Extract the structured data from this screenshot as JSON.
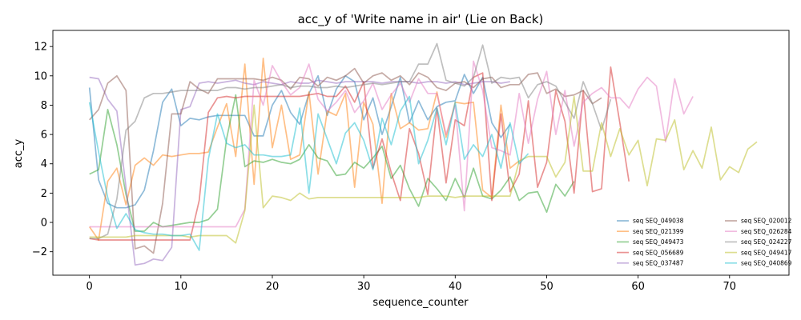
{
  "chart_data": {
    "type": "line",
    "title": "acc_y of 'Write name in air' (Lie on Back)",
    "xlabel": "sequence_counter",
    "ylabel": "acc_y",
    "xlim": [
      -4,
      76.5
    ],
    "ylim": [
      -3.6,
      13.1
    ],
    "xticks": [
      0,
      10,
      20,
      30,
      40,
      50,
      60,
      70
    ],
    "yticks": [
      -2,
      0,
      2,
      4,
      6,
      8,
      10,
      12
    ],
    "grid": false,
    "legend_position": "lower-right",
    "series": [
      {
        "name": "seq SEQ_049038",
        "color": "#1f77b4",
        "values": [
          9.2,
          2.9,
          1.3,
          1.0,
          1.0,
          1.2,
          2.2,
          4.9,
          8.2,
          9.1,
          6.6,
          7.1,
          7.0,
          7.2,
          7.3,
          7.3,
          7.3,
          7.3,
          5.9,
          5.9,
          8.0,
          9.0,
          7.5,
          6.7,
          8.8,
          10.0,
          7.3,
          9.1,
          10.0,
          9.6,
          7.0,
          8.5,
          6.0,
          7.9,
          9.9,
          6.8,
          8.3,
          7.0,
          7.9,
          8.2,
          8.3,
          10.1,
          8.8,
          9.9,
          6.8,
          5.8,
          6.7
        ]
      },
      {
        "name": "seq SEQ_021399",
        "color": "#ff7f0e",
        "values": [
          -0.3,
          -1.2,
          2.8,
          3.7,
          1.2,
          3.9,
          4.4,
          3.9,
          4.6,
          4.5,
          4.6,
          4.7,
          4.7,
          4.8,
          6.5,
          8.1,
          4.5,
          10.8,
          2.6,
          11.2,
          5.1,
          8.0,
          4.3,
          4.6,
          8.9,
          3.3,
          7.6,
          7.3,
          8.8,
          2.4,
          8.2,
          6.7,
          1.3,
          8.8,
          6.4,
          6.8,
          6.3,
          6.4,
          8.9,
          5.8,
          8.2,
          8.1,
          8.2,
          2.2,
          1.7,
          8.0,
          3.7,
          4.2
        ]
      },
      {
        "name": "seq SEQ_049473",
        "color": "#2ca02c",
        "values": [
          3.3,
          3.6,
          7.7,
          5.3,
          1.9,
          -0.6,
          -0.6,
          0.0,
          -0.3,
          -0.2,
          -0.1,
          0.0,
          0.0,
          0.2,
          0.9,
          5.7,
          8.7,
          3.8,
          4.2,
          4.1,
          4.3,
          4.1,
          4.0,
          4.3,
          5.3,
          4.4,
          4.2,
          3.2,
          3.3,
          4.1,
          3.7,
          4.4,
          5.2,
          3.0,
          3.9,
          2.3,
          1.1,
          3.0,
          2.3,
          1.5,
          3.0,
          1.7,
          3.7,
          1.8,
          1.6,
          2.2,
          3.1,
          1.5,
          2.0,
          2.1,
          0.7,
          2.6,
          1.8,
          2.8
        ]
      },
      {
        "name": "seq SEQ_056689",
        "color": "#d62728",
        "values": [
          -1.1,
          -1.2,
          -1.2,
          -1.2,
          -1.2,
          -1.2,
          -1.2,
          -1.2,
          -1.2,
          -1.2,
          -1.2,
          -1.2,
          1.5,
          7.5,
          8.5,
          8.6,
          8.5,
          8.6,
          8.6,
          8.6,
          8.6,
          8.6,
          8.6,
          8.6,
          8.7,
          8.8,
          8.6,
          8.6,
          9.3,
          8.2,
          9.6,
          3.7,
          5.7,
          3.4,
          1.5,
          6.4,
          4.7,
          1.9,
          7.8,
          2.7,
          7.0,
          6.6,
          9.9,
          10.2,
          1.5,
          7.4,
          2.1,
          3.3,
          8.3,
          2.4,
          4.1,
          9.0,
          6.9,
          2.0,
          9.0,
          2.1,
          2.3,
          10.6,
          6.8,
          2.8
        ]
      },
      {
        "name": "seq SEQ_037487",
        "color": "#9467bd",
        "values": [
          9.9,
          9.8,
          8.4,
          7.6,
          2.4,
          -2.9,
          -2.8,
          -2.5,
          -2.6,
          -1.7,
          7.7,
          7.9,
          9.5,
          9.6,
          9.5,
          9.6,
          9.7,
          9.5,
          9.4,
          9.6,
          9.5,
          9.4,
          9.6,
          9.5,
          9.5,
          9.7,
          9.6,
          9.5,
          9.6,
          9.6,
          9.6,
          9.6,
          9.5,
          9.6,
          9.6,
          9.6,
          9.5,
          9.6,
          9.6,
          9.5,
          9.6,
          9.4,
          9.5,
          9.6,
          9.6,
          9.5,
          9.6
        ]
      },
      {
        "name": "seq SEQ_020012",
        "color": "#8c564b",
        "values": [
          7.0,
          7.7,
          9.5,
          10.0,
          9.0,
          -1.8,
          -1.6,
          -2.1,
          1.3,
          7.4,
          7.4,
          9.6,
          9.1,
          8.8,
          9.8,
          9.8,
          9.8,
          9.8,
          9.8,
          9.7,
          9.9,
          9.7,
          9.1,
          9.9,
          9.8,
          9.3,
          9.9,
          9.7,
          10.0,
          10.5,
          9.5,
          10.0,
          10.2,
          9.7,
          10.0,
          9.4,
          10.2,
          9.9,
          9.2,
          9.0,
          9.5,
          9.6,
          9.2,
          9.8,
          9.9,
          9.2,
          9.4,
          9.4,
          10.1,
          10.2,
          8.8,
          9.1,
          8.6,
          8.7,
          9.0,
          8.1,
          8.5
        ]
      },
      {
        "name": "seq SEQ_026284",
        "color": "#e377c2",
        "values": [
          -0.3,
          -0.3,
          -0.3,
          -0.3,
          -0.3,
          -0.3,
          -0.3,
          -0.3,
          -0.3,
          -0.3,
          -0.3,
          -0.3,
          -0.3,
          -0.3,
          -0.3,
          -0.3,
          -0.3,
          0.9,
          9.7,
          8.0,
          10.7,
          9.6,
          8.7,
          9.2,
          10.8,
          8.4,
          7.6,
          8.2,
          9.0,
          7.5,
          8.3,
          9.5,
          7.7,
          8.7,
          9.5,
          8.2,
          9.8,
          8.8,
          8.8,
          6.0,
          8.0,
          0.8,
          11.0,
          9.0,
          5.1,
          4.9,
          4.6,
          8.8,
          5.4,
          8.4,
          10.3,
          6.0,
          9.0,
          5.2,
          8.2,
          8.8,
          9.2,
          8.5,
          8.5,
          7.8,
          9.1,
          9.9,
          9.3,
          5.5,
          9.8,
          7.4,
          8.6
        ]
      },
      {
        "name": "seq SEQ_024227",
        "color": "#7f7f7f",
        "values": [
          -1.1,
          -1.1,
          -0.8,
          1.6,
          6.3,
          6.9,
          8.5,
          8.8,
          8.8,
          8.9,
          9.0,
          9.0,
          9.0,
          9.0,
          9.0,
          9.2,
          9.2,
          9.1,
          9.2,
          9.2,
          9.3,
          9.4,
          9.2,
          9.3,
          9.3,
          9.2,
          9.2,
          9.3,
          9.2,
          9.3,
          9.4,
          9.5,
          9.4,
          9.5,
          9.6,
          9.6,
          10.8,
          10.8,
          12.2,
          9.7,
          9.5,
          9.3,
          9.9,
          12.1,
          9.5,
          9.9,
          9.8,
          9.9,
          8.5,
          9.4,
          9.6,
          9.3,
          8.2,
          7.1,
          9.6,
          8.1,
          6.3,
          8.4
        ]
      },
      {
        "name": "seq SEQ_049417",
        "color": "#bcbd22",
        "values": [
          -1.0,
          -1.0,
          -1.0,
          -1.0,
          -1.0,
          -0.9,
          -0.9,
          -0.9,
          -0.9,
          -0.9,
          -0.9,
          -1.0,
          -0.9,
          -0.9,
          -0.9,
          -0.9,
          -1.4,
          0.8,
          8.0,
          1.0,
          1.8,
          1.7,
          1.5,
          2.0,
          1.6,
          1.7,
          1.7,
          1.7,
          1.7,
          1.7,
          1.7,
          1.7,
          1.7,
          1.7,
          1.7,
          1.7,
          1.7,
          1.8,
          1.8,
          1.8,
          1.7,
          1.8,
          1.8,
          1.8,
          1.8,
          1.8,
          1.8,
          4.2,
          4.5,
          4.5,
          4.5,
          3.1,
          4.1,
          8.6,
          3.5,
          3.5,
          6.8,
          4.5,
          6.4,
          4.6,
          5.6,
          2.5,
          5.7,
          5.6,
          7.0,
          3.6,
          4.9,
          3.7,
          6.5,
          2.9,
          3.8,
          3.4,
          5.0,
          5.5
        ]
      },
      {
        "name": "seq SEQ_040869",
        "color": "#17becf",
        "values": [
          8.2,
          4.8,
          1.7,
          -0.4,
          0.6,
          -0.5,
          -0.7,
          -0.8,
          -0.8,
          -0.9,
          -0.9,
          -0.8,
          -1.9,
          4.3,
          7.4,
          5.4,
          5.1,
          5.3,
          4.6,
          4.6,
          4.5,
          4.5,
          4.6,
          7.8,
          2.0,
          7.4,
          5.7,
          4.0,
          6.1,
          6.8,
          5.6,
          3.6,
          7.1,
          5.3,
          7.6,
          8.6,
          4.0,
          5.6,
          7.8,
          5.3,
          8.2,
          4.3,
          5.3,
          4.5,
          6.0,
          3.7,
          6.8,
          4.0,
          4.7
        ]
      }
    ]
  }
}
